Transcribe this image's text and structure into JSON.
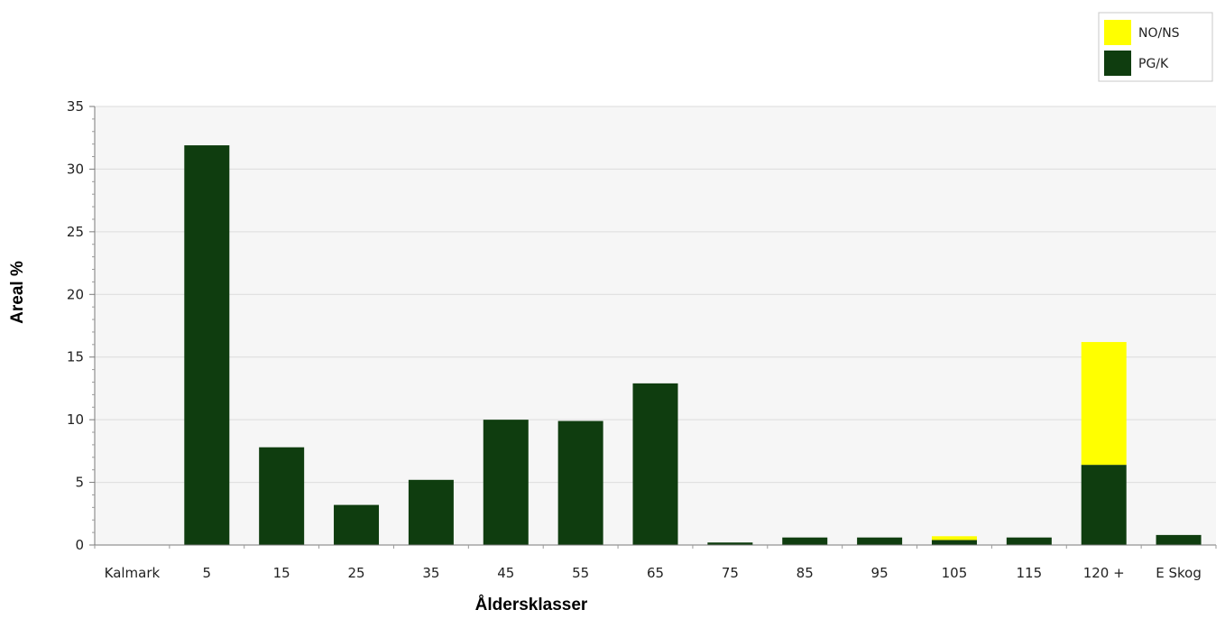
{
  "chart_data": {
    "type": "bar",
    "stacked": true,
    "title": "",
    "xlabel": "Åldersklasser",
    "ylabel": "Areal %",
    "ylim": [
      0,
      35
    ],
    "yticks": [
      0,
      5,
      10,
      15,
      20,
      25,
      30,
      35
    ],
    "grid": true,
    "legend_position": "top-right",
    "categories": [
      "Kalmark",
      "5",
      "15",
      "25",
      "35",
      "45",
      "55",
      "65",
      "75",
      "85",
      "95",
      "105",
      "115",
      "120 +",
      "E Skog"
    ],
    "series": [
      {
        "name": "PG/K",
        "color": "#0f3d0f",
        "values": [
          0,
          31.9,
          7.8,
          3.2,
          5.2,
          10.0,
          9.9,
          12.9,
          0.2,
          0.6,
          0.6,
          0.4,
          0.6,
          6.4,
          0.8
        ]
      },
      {
        "name": "NO/NS",
        "color": "#ffff00",
        "values": [
          0,
          0,
          0,
          0,
          0,
          0,
          0,
          0,
          0,
          0,
          0,
          0.3,
          0,
          9.8,
          0
        ]
      }
    ]
  }
}
